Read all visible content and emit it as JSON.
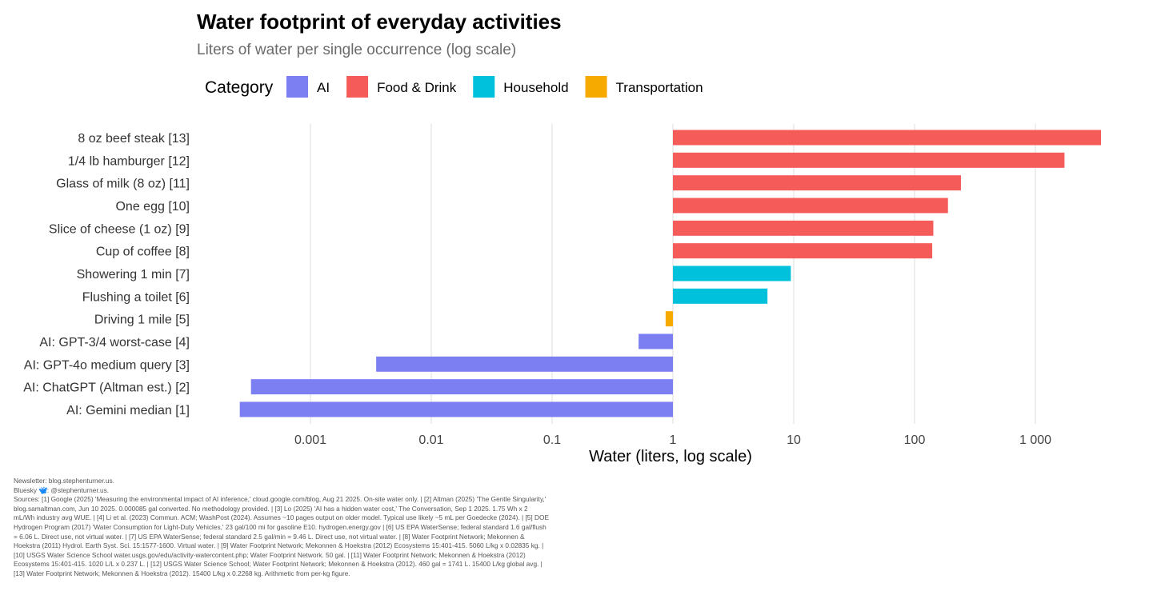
{
  "chart_data": {
    "type": "bar",
    "orientation": "horizontal",
    "title": "Water footprint of everyday activities",
    "subtitle": "Liters of water per single occurrence (log scale)",
    "xlabel": "Water (liters, log scale)",
    "ylabel": "",
    "xscale": "log10",
    "xlim": [
      0.00012,
      4000
    ],
    "grid": true,
    "legend": {
      "title": "Category",
      "position": "top-left",
      "entries": [
        {
          "name": "AI",
          "color": "#7b7ff2"
        },
        {
          "name": "Food & Drink",
          "color": "#f55c59"
        },
        {
          "name": "Household",
          "color": "#00c1dc"
        },
        {
          "name": "Transportation",
          "color": "#f6aa00"
        }
      ]
    },
    "xticks": [
      {
        "value": 0.001,
        "label": "0.001"
      },
      {
        "value": 0.01,
        "label": "0.01"
      },
      {
        "value": 0.1,
        "label": "0.1"
      },
      {
        "value": 1,
        "label": "1"
      },
      {
        "value": 10,
        "label": "10"
      },
      {
        "value": 100,
        "label": "100"
      },
      {
        "value": 1000,
        "label": "1 000"
      }
    ],
    "baseline": 1,
    "bars": [
      {
        "label": "8 oz beef steak [13]",
        "value": 3493,
        "category": "Food & Drink"
      },
      {
        "label": "1/4 lb hamburger [12]",
        "value": 1741,
        "category": "Food & Drink"
      },
      {
        "label": "Glass of milk (8 oz) [11]",
        "value": 242,
        "category": "Food & Drink"
      },
      {
        "label": "One egg [10]",
        "value": 189,
        "category": "Food & Drink"
      },
      {
        "label": "Slice of cheese (1 oz) [9]",
        "value": 143,
        "category": "Food & Drink"
      },
      {
        "label": "Cup of coffee [8]",
        "value": 140,
        "category": "Food & Drink"
      },
      {
        "label": "Showering 1 min [7]",
        "value": 9.46,
        "category": "Household"
      },
      {
        "label": "Flushing a toilet [6]",
        "value": 6.06,
        "category": "Household"
      },
      {
        "label": "Driving 1 mile [5]",
        "value": 0.87,
        "category": "Transportation"
      },
      {
        "label": "AI: GPT-3/4 worst-case [4]",
        "value": 0.52,
        "category": "AI"
      },
      {
        "label": "AI: GPT-4o medium query [3]",
        "value": 0.0035,
        "category": "AI"
      },
      {
        "label": "AI: ChatGPT (Altman est.) [2]",
        "value": 0.000322,
        "category": "AI"
      },
      {
        "label": "AI: Gemini median [1]",
        "value": 0.00026,
        "category": "AI"
      }
    ]
  },
  "caption": {
    "newsletter": "Newsletter: blog.stephenturner.us.",
    "bluesky_prefix": "Bluesky",
    "bluesky_icon": "butterfly-icon",
    "bluesky_handle": ": @stephenturner.us.",
    "sources": "Sources: [1] Google (2025) 'Measuring the environmental impact of AI inference,' cloud.google.com/blog, Aug 21 2025. On-site water only. | [2] Altman (2025) 'The Gentle Singularity,' blog.samaltman.com, Jun 10 2025. 0.000085 gal converted. No methodology provided. | [3] Lo (2025) 'AI has a hidden water cost,' The Conversation, Sep 1 2025. 1.75 Wh x 2 mL/Wh industry avg WUE. | [4] Li et al. (2023) Commun. ACM; WashPost (2024). Assumes ~10 pages output on older model. Typical use likely ~5 mL per Goedecke (2024). | [5] DOE Hydrogen Program (2017) 'Water Consumption for Light-Duty Vehicles,' 23 gal/100 mi for gasoline E10. hydrogen.energy.gov | [6] US EPA WaterSense; federal standard 1.6 gal/flush = 6.06 L. Direct use, not virtual water. | [7] US EPA WaterSense; federal standard 2.5 gal/min = 9.46 L. Direct use, not virtual water. | [8] Water Footprint Network; Mekonnen & Hoekstra (2011) Hydrol. Earth Syst. Sci. 15:1577-1600. Virtual water. | [9] Water Footprint Network; Mekonnen & Hoekstra (2012) Ecosystems 15:401-415. 5060 L/kg x 0.02835 kg. | [10] USGS Water Science School water.usgs.gov/edu/activity-watercontent.php; Water Footprint Network. 50 gal. | [11] Water Footprint Network; Mekonnen & Hoekstra (2012) Ecosystems 15:401-415. 1020 L/L x 0.237 L. | [12] USGS Water Science School; Water Footprint Network; Mekonnen & Hoekstra (2012). 460 gal = 1741 L. 15400 L/kg global avg. | [13] Water Footprint Network; Mekonnen & Hoekstra (2012). 15400 L/kg x 0.2268 kg. Arithmetic from per-kg figure."
  }
}
